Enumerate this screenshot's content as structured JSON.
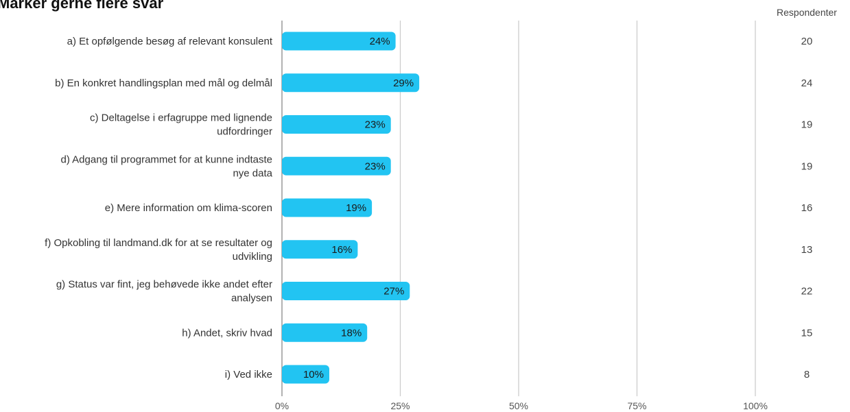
{
  "chart_data": {
    "type": "bar",
    "orientation": "horizontal",
    "title": "Marker gerne flere svar",
    "categories": [
      [
        "a) Et opfølgende besøg af relevant konsulent"
      ],
      [
        "b) En konkret handlingsplan med mål og delmål"
      ],
      [
        "c) Deltagelse i erfagruppe med lignende",
        "udfordringer"
      ],
      [
        "d) Adgang til programmet for at kunne indtaste",
        "nye data"
      ],
      [
        "e) Mere information om klima-scoren"
      ],
      [
        "f) Opkobling til landmand.dk for at se resultater og",
        "udvikling"
      ],
      [
        "g) Status var fint, jeg behøvede ikke andet efter",
        "analysen"
      ],
      [
        "h) Andet, skriv hvad"
      ],
      [
        "i) Ved ikke"
      ]
    ],
    "values": [
      24,
      29,
      23,
      23,
      19,
      16,
      27,
      18,
      10
    ],
    "data_labels": [
      "24%",
      "29%",
      "23%",
      "23%",
      "19%",
      "16%",
      "27%",
      "18%",
      "10%"
    ],
    "count_header": "Respondenter",
    "counts": [
      20,
      24,
      19,
      19,
      16,
      13,
      22,
      15,
      8
    ],
    "xlim": [
      0,
      100
    ],
    "x_ticks": [
      0,
      25,
      50,
      75,
      100
    ],
    "x_tick_labels": [
      "0%",
      "25%",
      "50%",
      "75%",
      "100%"
    ],
    "grid": true,
    "bar_color": "#22c4f2",
    "grid_color": "#cccccc"
  }
}
